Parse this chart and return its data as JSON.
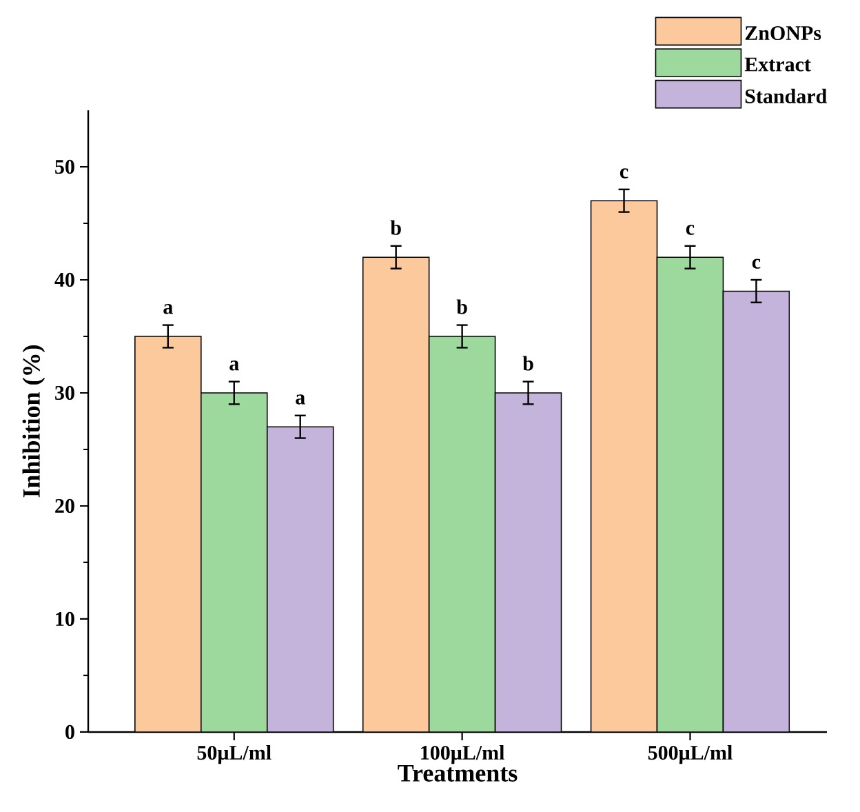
{
  "chart_data": {
    "type": "bar",
    "xlabel": "Treatments",
    "ylabel": "Inhibition (%)",
    "categories": [
      "50μL/ml",
      "100μL/ml",
      "500μL/ml"
    ],
    "series": [
      {
        "name": "ZnONPs",
        "color": "#fbc99b",
        "values": [
          35,
          42,
          47
        ],
        "errors": [
          1,
          1,
          1
        ]
      },
      {
        "name": "Extract",
        "color": "#9dd99c",
        "values": [
          30,
          35,
          42
        ],
        "errors": [
          1,
          1,
          1
        ]
      },
      {
        "name": "Standard",
        "color": "#c4b3da",
        "values": [
          27,
          30,
          39
        ],
        "errors": [
          1,
          1,
          1
        ]
      }
    ],
    "ylim": [
      0,
      55
    ],
    "yticks": [
      0,
      10,
      20,
      30,
      40,
      50
    ],
    "legend": "top right",
    "annotations": [
      "a",
      "a",
      "a",
      "b",
      "b",
      "b",
      "c",
      "c",
      "c"
    ]
  }
}
